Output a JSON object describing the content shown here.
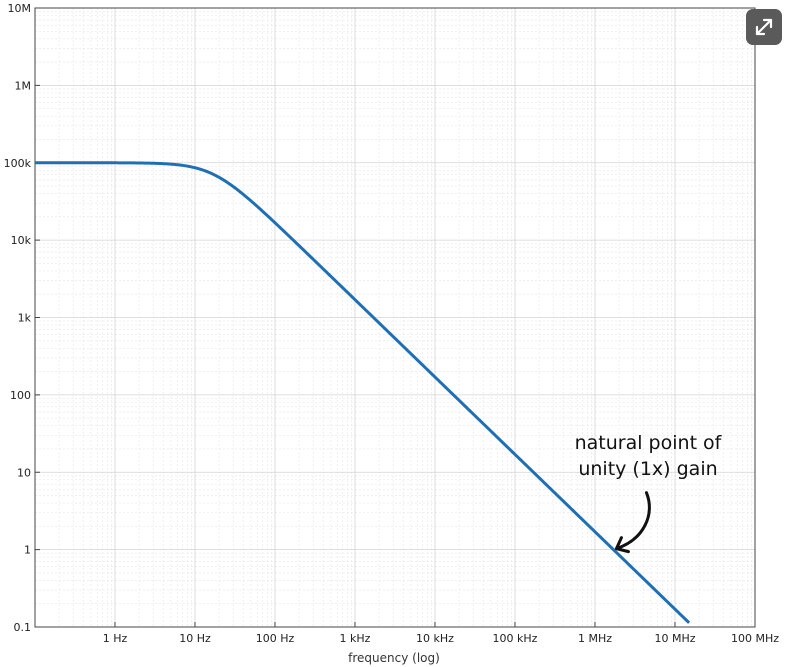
{
  "chart_data": {
    "type": "line",
    "xscale": "log",
    "yscale": "log",
    "xlabel": "frequency (log)",
    "ylabel": "",
    "xlim": [
      0.1,
      100000000
    ],
    "ylim": [
      0.1,
      10000000
    ],
    "x_ticks": [
      {
        "value": 1,
        "label": "1 Hz"
      },
      {
        "value": 10,
        "label": "10 Hz"
      },
      {
        "value": 100,
        "label": "100 Hz"
      },
      {
        "value": 1000,
        "label": "1 kHz"
      },
      {
        "value": 10000,
        "label": "10 kHz"
      },
      {
        "value": 100000,
        "label": "100 kHz"
      },
      {
        "value": 1000000,
        "label": "1 MHz"
      },
      {
        "value": 10000000,
        "label": "10 MHz"
      },
      {
        "value": 100000000,
        "label": "100 MHz"
      }
    ],
    "y_ticks": [
      {
        "value": 0.1,
        "label": "0.1"
      },
      {
        "value": 1,
        "label": "1"
      },
      {
        "value": 10,
        "label": "10"
      },
      {
        "value": 100,
        "label": "100"
      },
      {
        "value": 1000,
        "label": "1k"
      },
      {
        "value": 10000,
        "label": "10k"
      },
      {
        "value": 100000,
        "label": "100k"
      },
      {
        "value": 1000000,
        "label": "1M"
      },
      {
        "value": 10000000,
        "label": "10M"
      }
    ],
    "grid": true,
    "series": [
      {
        "color": "#1f6fb5",
        "dc_gain": 100000,
        "corner_frequency_hz": 17,
        "x_range": [
          0.1,
          15000000
        ]
      }
    ],
    "annotation": {
      "lines": [
        "natural point of",
        "unity (1x) gain"
      ],
      "target": {
        "x": 1700000,
        "y": 1
      }
    }
  },
  "controls": {
    "expand_icon": "expand-diagonal-arrows-icon"
  }
}
